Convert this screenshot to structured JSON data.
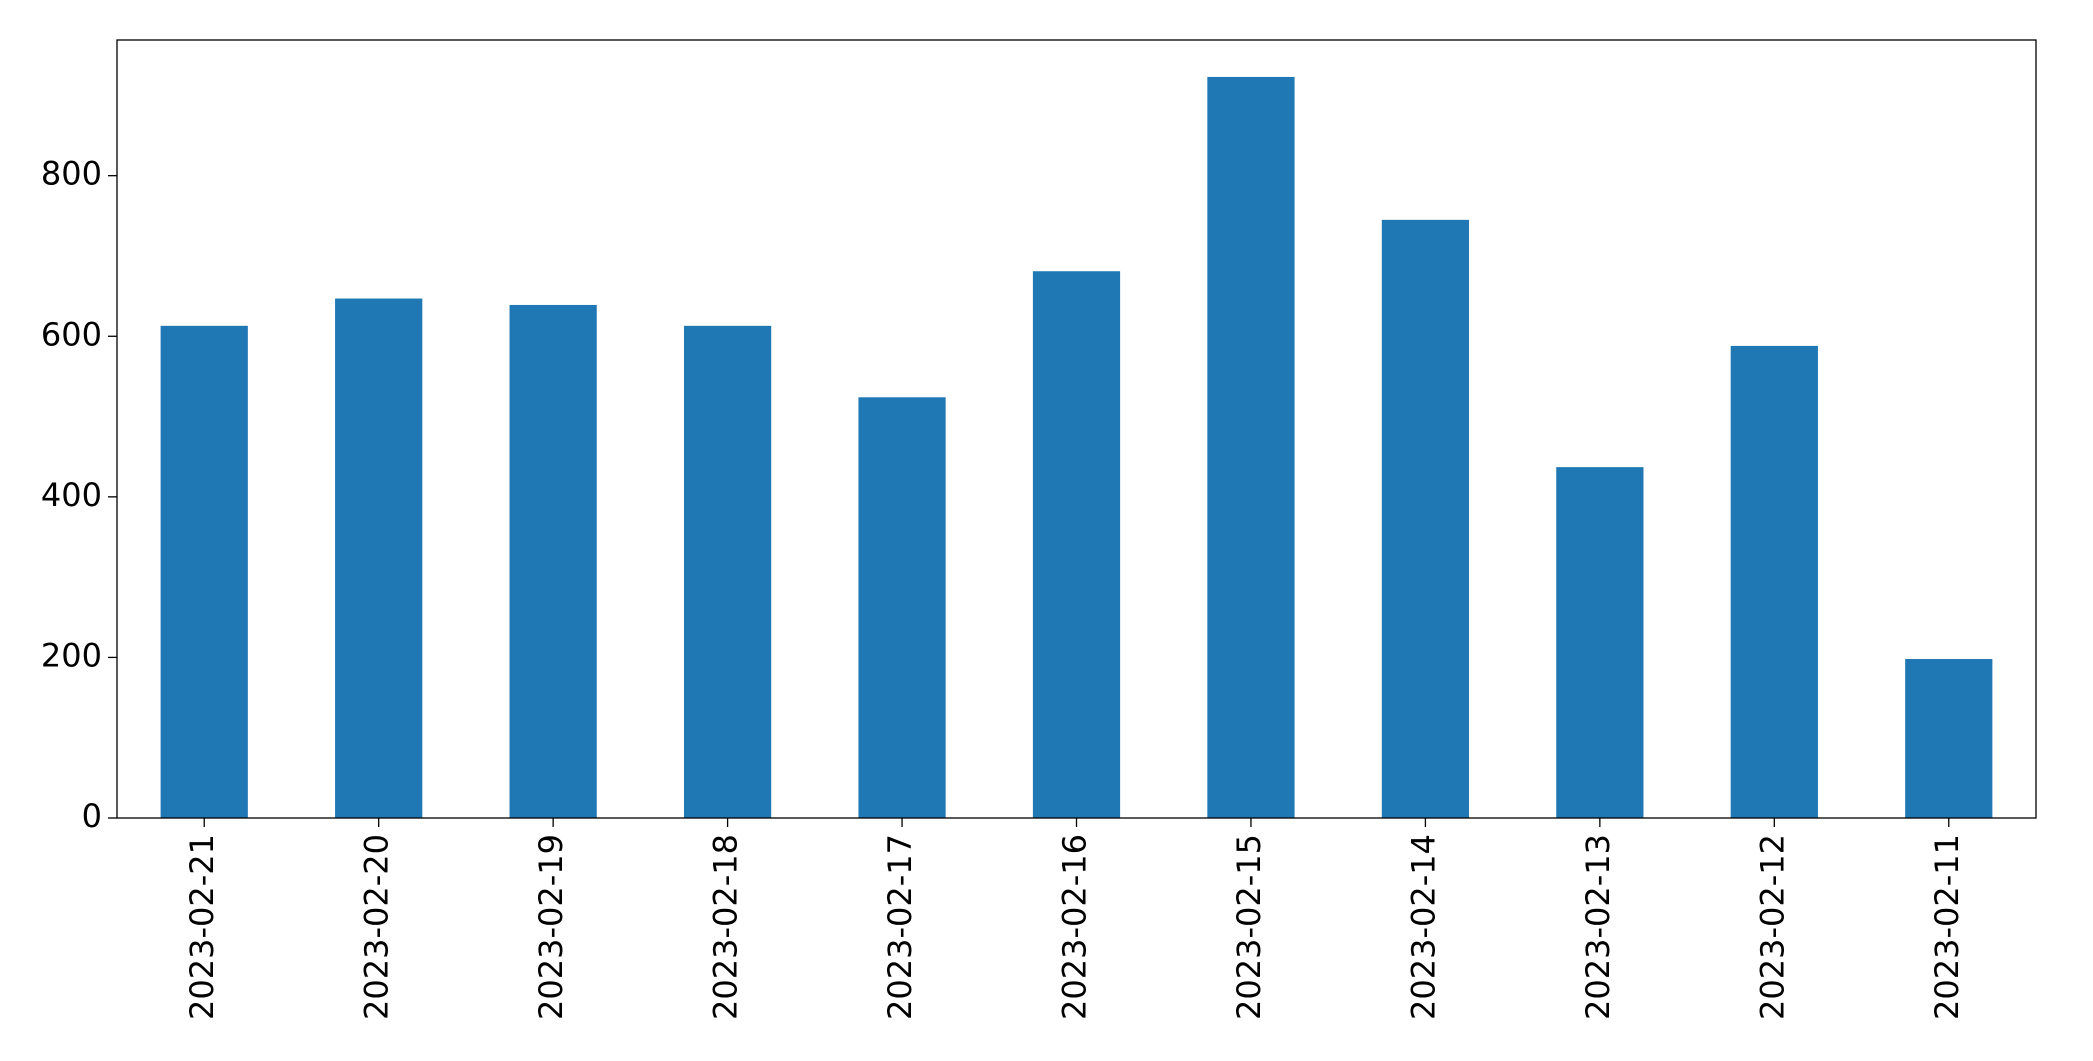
{
  "chart_data": {
    "type": "bar",
    "categories": [
      "2023-02-21",
      "2023-02-20",
      "2023-02-19",
      "2023-02-18",
      "2023-02-17",
      "2023-02-16",
      "2023-02-15",
      "2023-02-14",
      "2023-02-13",
      "2023-02-12",
      "2023-02-11"
    ],
    "values": [
      613,
      647,
      639,
      613,
      524,
      681,
      923,
      745,
      437,
      588,
      198
    ],
    "color": "#1f77b4",
    "ylim": [
      0,
      969
    ],
    "yticks": [
      0,
      200,
      400,
      600,
      800
    ],
    "grid": false
  }
}
